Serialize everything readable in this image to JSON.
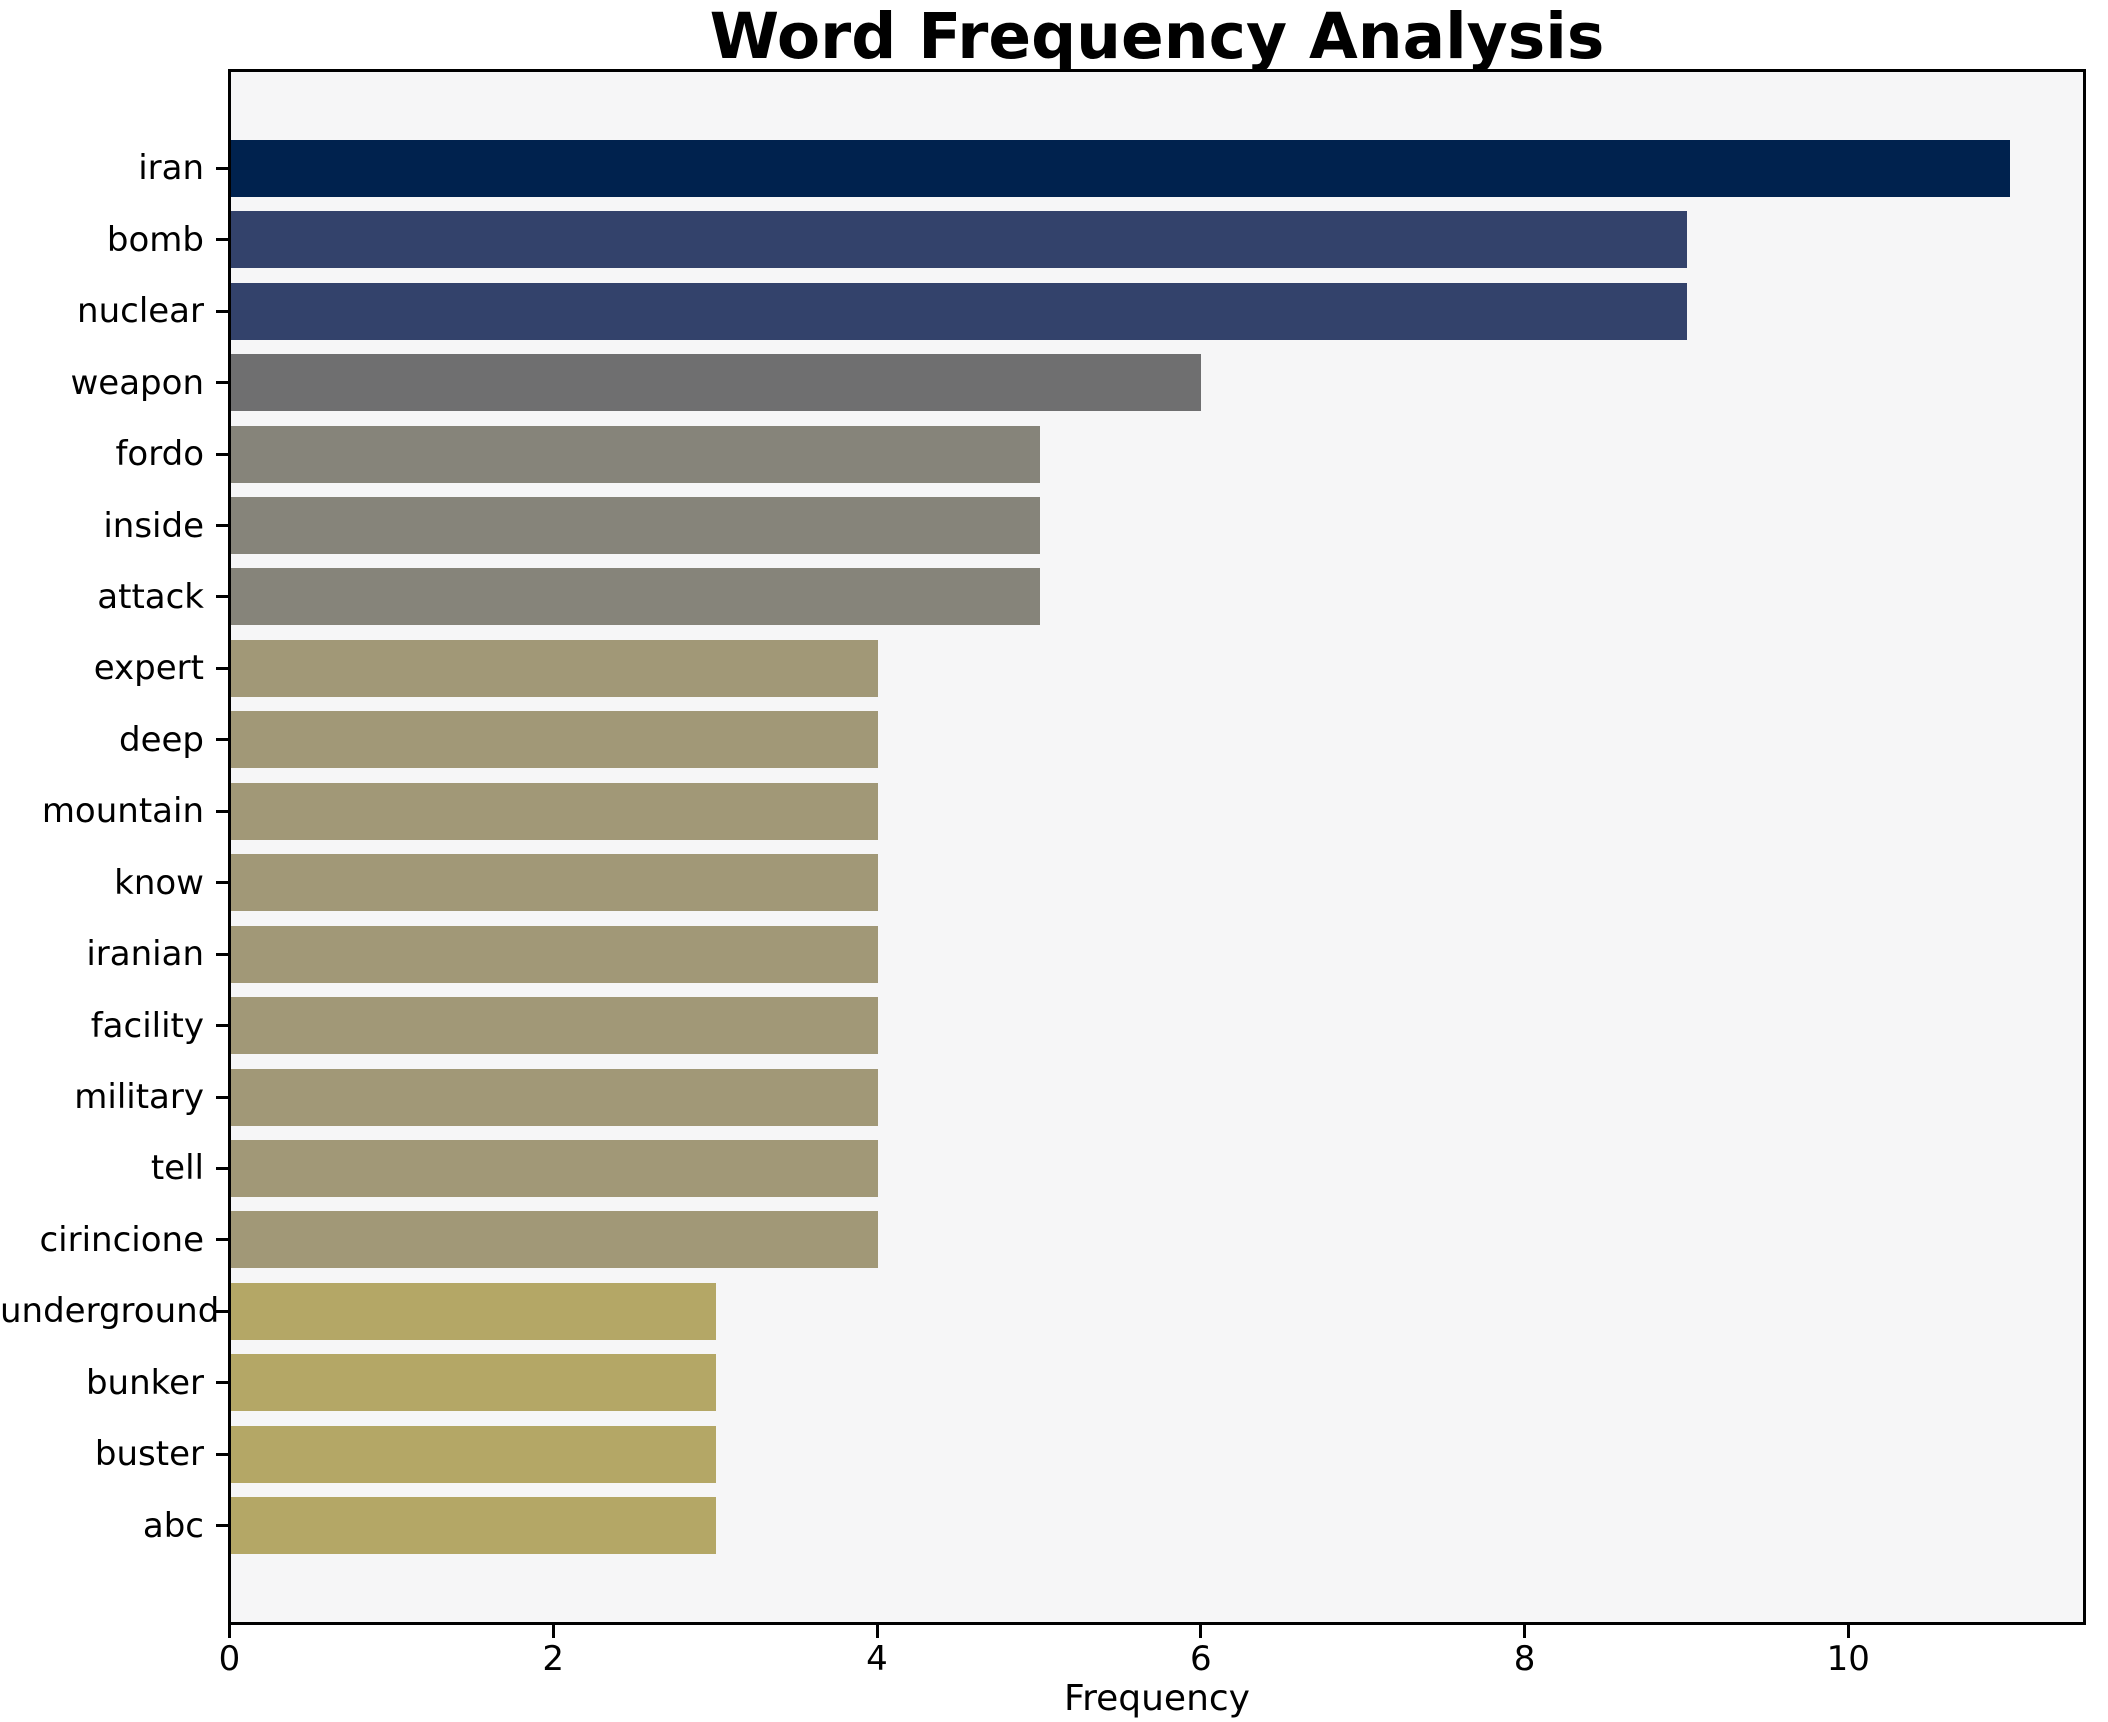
{
  "title": "Word Frequency Analysis",
  "chart_data": {
    "type": "bar",
    "orientation": "horizontal",
    "title": "Word Frequency Analysis",
    "xlabel": "Frequency",
    "ylabel": "",
    "categories": [
      "iran",
      "bomb",
      "nuclear",
      "weapon",
      "fordo",
      "inside",
      "attack",
      "expert",
      "deep",
      "mountain",
      "know",
      "iranian",
      "facility",
      "military",
      "tell",
      "cirincione",
      "underground",
      "bunker",
      "buster",
      "abc"
    ],
    "values": [
      11,
      9,
      9,
      6,
      5,
      5,
      5,
      4,
      4,
      4,
      4,
      4,
      4,
      4,
      4,
      4,
      3,
      3,
      3,
      3
    ],
    "bar_colors": [
      "#00224e",
      "#33426b",
      "#33426b",
      "#6f6f70",
      "#86847a",
      "#86847a",
      "#86847a",
      "#a19877",
      "#a19877",
      "#a19877",
      "#a19877",
      "#a19877",
      "#a19877",
      "#a19877",
      "#a19877",
      "#a19877",
      "#b4a766",
      "#b4a766",
      "#b4a766",
      "#b4a766"
    ],
    "xticks": [
      0,
      2,
      4,
      6,
      8,
      10
    ],
    "xlim": [
      0,
      11.45
    ],
    "grid": false,
    "legend": "none",
    "plot_background": "#f6f6f7",
    "figure_background": "#ffffff",
    "axis_color": "#000000",
    "text_color": "#000000"
  }
}
